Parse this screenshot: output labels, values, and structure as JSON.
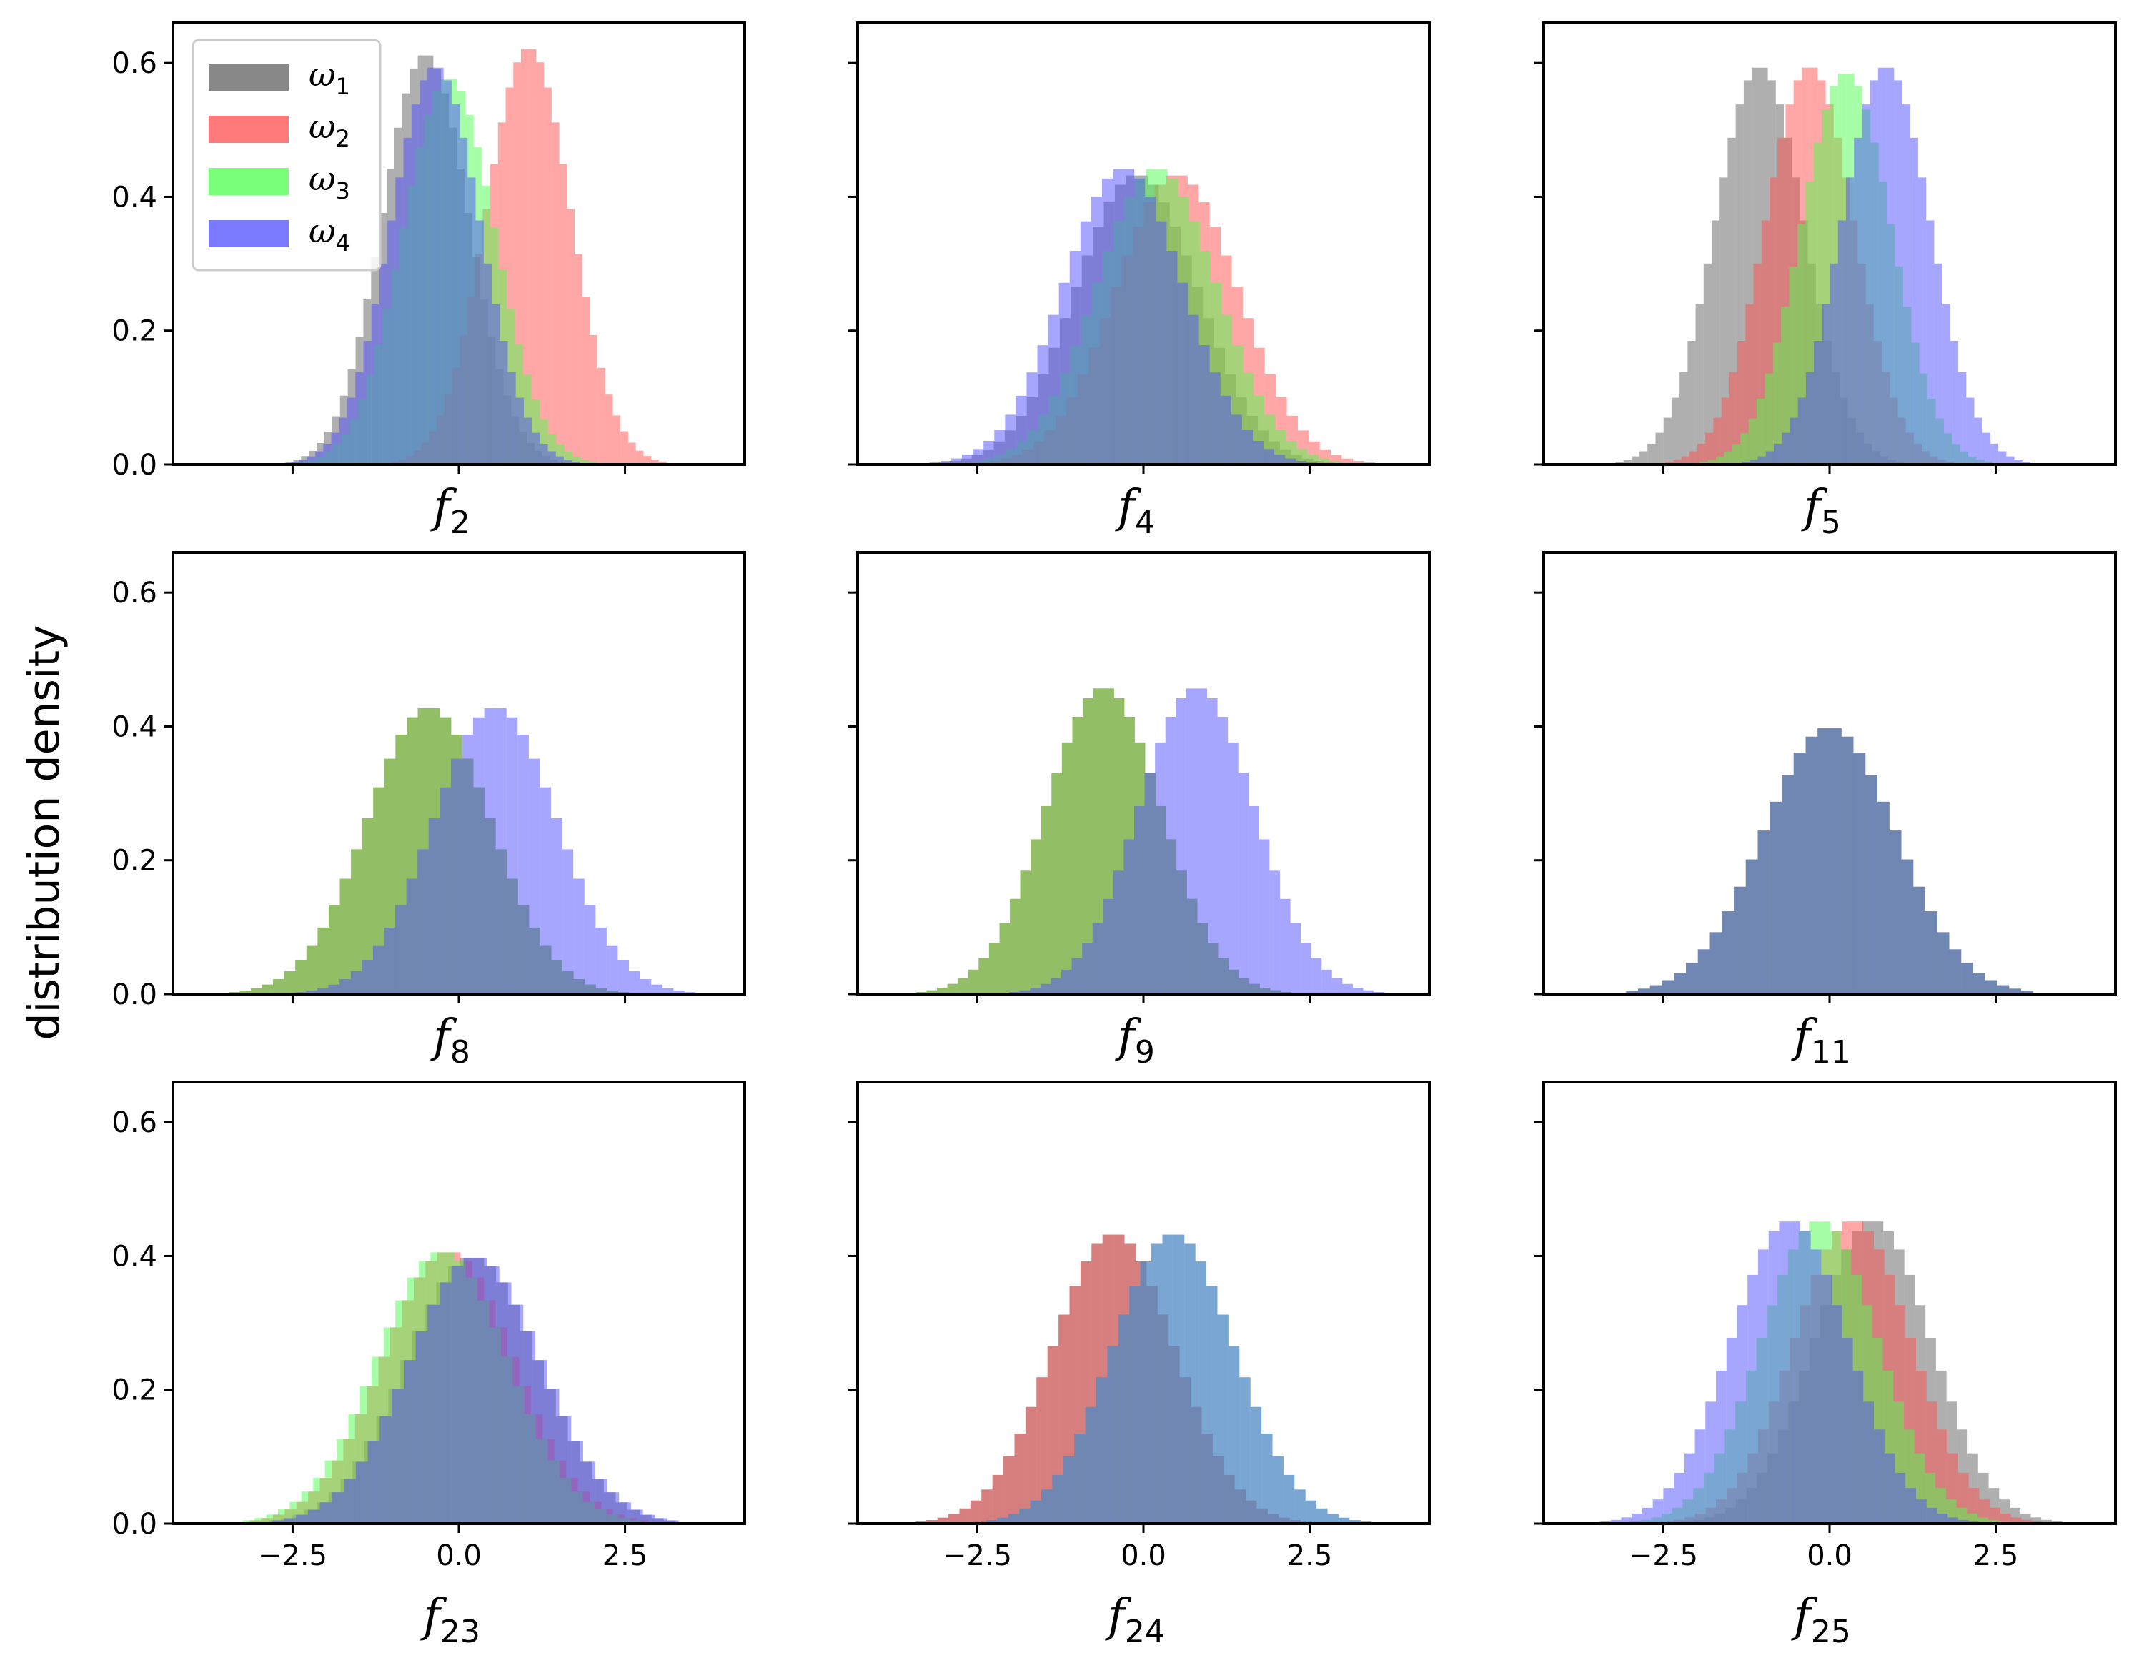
{
  "figure": {
    "ylabel": "distribution density"
  },
  "legend": [
    {
      "symbol": "ω",
      "sub": "1",
      "color": "#606060"
    },
    {
      "symbol": "ω",
      "sub": "2",
      "color": "#ff4d4d"
    },
    {
      "symbol": "ω",
      "sub": "3",
      "color": "#4dff4d"
    },
    {
      "symbol": "ω",
      "sub": "4",
      "color": "#4d4dff"
    }
  ],
  "chart_data": [
    {
      "type": "histogram",
      "xlabel": "f",
      "xsub": "2",
      "xlim": [
        -4.3,
        4.3
      ],
      "ylim": [
        0,
        0.66
      ],
      "yticks": [
        0.0,
        0.2,
        0.4,
        0.6
      ],
      "xticks": [
        -2.5,
        0.0,
        2.5
      ],
      "show_xticklabels": false,
      "show_yticklabels": true,
      "series": [
        {
          "mean": -0.5,
          "sd": 0.65
        },
        {
          "mean": 1.05,
          "sd": 0.64
        },
        {
          "mean": -0.15,
          "sd": 0.69
        },
        {
          "mean": -0.35,
          "sd": 0.67
        }
      ]
    },
    {
      "type": "histogram",
      "xlabel": "f",
      "xsub": "4",
      "xlim": [
        -4.3,
        4.3
      ],
      "ylim": [
        0,
        0.66
      ],
      "yticks": [
        0.0,
        0.2,
        0.4,
        0.6
      ],
      "xticks": [
        -2.5,
        0.0,
        2.5
      ],
      "show_xticklabels": false,
      "show_yticklabels": false,
      "series": [
        {
          "mean": -0.1,
          "sd": 0.92
        },
        {
          "mean": 0.5,
          "sd": 0.92
        },
        {
          "mean": 0.2,
          "sd": 0.9
        },
        {
          "mean": -0.3,
          "sd": 0.9
        }
      ]
    },
    {
      "type": "histogram",
      "xlabel": "f",
      "xsub": "5",
      "xlim": [
        -4.3,
        4.3
      ],
      "ylim": [
        0,
        0.66
      ],
      "yticks": [
        0.0,
        0.2,
        0.4,
        0.6
      ],
      "xticks": [
        -2.5,
        0.0,
        2.5
      ],
      "show_xticklabels": false,
      "show_yticklabels": false,
      "series": [
        {
          "mean": -1.05,
          "sd": 0.67
        },
        {
          "mean": -0.3,
          "sd": 0.67
        },
        {
          "mean": 0.25,
          "sd": 0.68
        },
        {
          "mean": 0.85,
          "sd": 0.67
        }
      ]
    },
    {
      "type": "histogram",
      "xlabel": "f",
      "xsub": "8",
      "xlim": [
        -4.3,
        4.3
      ],
      "ylim": [
        0,
        0.66
      ],
      "yticks": [
        0.0,
        0.2,
        0.4,
        0.6
      ],
      "xticks": [
        -2.5,
        0.0,
        2.5
      ],
      "show_xticklabels": false,
      "show_yticklabels": true,
      "series": [
        {
          "mean": -0.45,
          "sd": 0.93
        },
        {
          "mean": -0.45,
          "sd": 0.93
        },
        {
          "mean": -0.45,
          "sd": 0.93
        },
        {
          "mean": 0.55,
          "sd": 0.93
        }
      ]
    },
    {
      "type": "histogram",
      "xlabel": "f",
      "xsub": "9",
      "xlim": [
        -4.3,
        4.3
      ],
      "ylim": [
        0,
        0.66
      ],
      "yticks": [
        0.0,
        0.2,
        0.4,
        0.6
      ],
      "xticks": [
        -2.5,
        0.0,
        2.5
      ],
      "show_xticklabels": false,
      "show_yticklabels": false,
      "series": [
        {
          "mean": -0.6,
          "sd": 0.87
        },
        {
          "mean": -0.6,
          "sd": 0.87
        },
        {
          "mean": -0.6,
          "sd": 0.87
        },
        {
          "mean": 0.8,
          "sd": 0.87
        }
      ]
    },
    {
      "type": "histogram",
      "xlabel": "f",
      "xsub": "11",
      "xlim": [
        -4.3,
        4.3
      ],
      "ylim": [
        0,
        0.66
      ],
      "yticks": [
        0.0,
        0.2,
        0.4,
        0.6
      ],
      "xticks": [
        -2.5,
        0.0,
        2.5
      ],
      "show_xticklabels": false,
      "show_yticklabels": false,
      "series": [
        {
          "mean": 0.0,
          "sd": 1.0
        },
        {
          "mean": 0.0,
          "sd": 1.0
        },
        {
          "mean": 0.0,
          "sd": 1.0
        },
        {
          "mean": 0.0,
          "sd": 1.0
        }
      ]
    },
    {
      "type": "histogram",
      "xlabel": "f",
      "xsub": "23",
      "xlim": [
        -4.3,
        4.3
      ],
      "ylim": [
        0,
        0.66
      ],
      "yticks": [
        0.0,
        0.2,
        0.4,
        0.6
      ],
      "xticks": [
        -2.5,
        0.0,
        2.5
      ],
      "xticklabels": [
        "−2.5",
        "0.0",
        "2.5"
      ],
      "show_xticklabels": true,
      "show_yticklabels": true,
      "series": [
        {
          "mean": 0.2,
          "sd": 1.0
        },
        {
          "mean": -0.15,
          "sd": 0.98
        },
        {
          "mean": -0.25,
          "sd": 0.98
        },
        {
          "mean": 0.25,
          "sd": 1.0
        }
      ]
    },
    {
      "type": "histogram",
      "xlabel": "f",
      "xsub": "24",
      "xlim": [
        -4.3,
        4.3
      ],
      "ylim": [
        0,
        0.66
      ],
      "yticks": [
        0.0,
        0.2,
        0.4,
        0.6
      ],
      "xticks": [
        -2.5,
        0.0,
        2.5
      ],
      "xticklabels": [
        "−2.5",
        "0.0",
        "2.5"
      ],
      "show_xticklabels": true,
      "show_yticklabels": false,
      "series": [
        {
          "mean": -0.45,
          "sd": 0.92
        },
        {
          "mean": -0.45,
          "sd": 0.92
        },
        {
          "mean": 0.45,
          "sd": 0.92
        },
        {
          "mean": 0.45,
          "sd": 0.92
        }
      ]
    },
    {
      "type": "histogram",
      "xlabel": "f",
      "xsub": "25",
      "xlim": [
        -4.3,
        4.3
      ],
      "ylim": [
        0,
        0.66
      ],
      "yticks": [
        0.0,
        0.2,
        0.4,
        0.6
      ],
      "xticks": [
        -2.5,
        0.0,
        2.5
      ],
      "xticklabels": [
        "−2.5",
        "0.0",
        "2.5"
      ],
      "show_xticklabels": true,
      "show_yticklabels": false,
      "series": [
        {
          "mean": 0.65,
          "sd": 0.88
        },
        {
          "mean": 0.35,
          "sd": 0.88
        },
        {
          "mean": -0.15,
          "sd": 0.88
        },
        {
          "mean": -0.6,
          "sd": 0.88
        }
      ]
    }
  ]
}
